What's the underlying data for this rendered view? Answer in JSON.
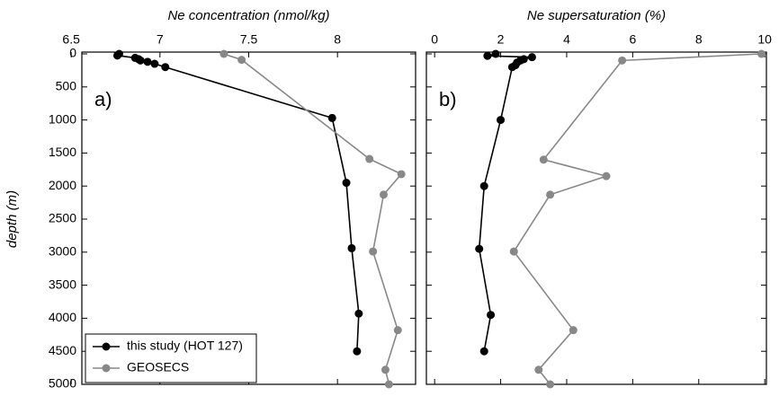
{
  "chart_data": [
    {
      "type": "line",
      "xlabel": "Ne concentration (nmol/kg)",
      "ylabel": "depth (m)",
      "annotation": "a)",
      "xlim": [
        6.56,
        8.44
      ],
      "xticks": [
        6.5,
        7,
        7.5,
        8
      ],
      "ylim": [
        0,
        5000
      ],
      "yticks": [
        0,
        500,
        1000,
        1500,
        2000,
        2500,
        3000,
        3500,
        4000,
        4500,
        5000
      ],
      "y_inverted": true,
      "legend": "lower left",
      "series": [
        {
          "name": "this study (HOT 127)",
          "color": "#000000",
          "x": [
            6.77,
            6.76,
            6.86,
            6.88,
            6.89,
            6.93,
            6.97,
            7.03,
            7.97,
            8.05,
            8.08,
            8.12,
            8.11
          ],
          "y": [
            0,
            25,
            60,
            80,
            100,
            120,
            150,
            200,
            970,
            1950,
            2940,
            3930,
            4500
          ]
        },
        {
          "name": "GEOSECS",
          "color": "#888888",
          "x": [
            7.36,
            7.46,
            8.18,
            8.36,
            8.26,
            8.2,
            8.34,
            8.27,
            8.29
          ],
          "y": [
            0,
            90,
            1590,
            1820,
            2130,
            2990,
            4180,
            4780,
            5000
          ]
        }
      ]
    },
    {
      "type": "line",
      "xlabel": "Ne supersaturation (%)",
      "annotation": "b)",
      "xlim": [
        -0.25,
        10.05
      ],
      "xticks": [
        0,
        2,
        4,
        6,
        8,
        10
      ],
      "ylim": [
        0,
        5000
      ],
      "yticks": [
        0,
        500,
        1000,
        1500,
        2000,
        2500,
        3000,
        3500,
        4000,
        4500,
        5000
      ],
      "y_inverted": true,
      "series": [
        {
          "color": "#000000",
          "x": [
            1.85,
            1.6,
            2.95,
            2.7,
            2.6,
            2.5,
            2.45,
            2.35,
            2.0,
            1.5,
            1.35,
            1.7,
            1.5
          ],
          "y": [
            0,
            30,
            50,
            80,
            100,
            130,
            170,
            200,
            1000,
            2000,
            2950,
            3950,
            4500
          ]
        },
        {
          "color": "#888888",
          "x": [
            9.9,
            5.68,
            3.3,
            5.2,
            3.5,
            2.4,
            4.2,
            3.15,
            3.5
          ],
          "y": [
            0,
            100,
            1600,
            1850,
            2130,
            2990,
            4180,
            4780,
            5000
          ]
        }
      ]
    }
  ]
}
